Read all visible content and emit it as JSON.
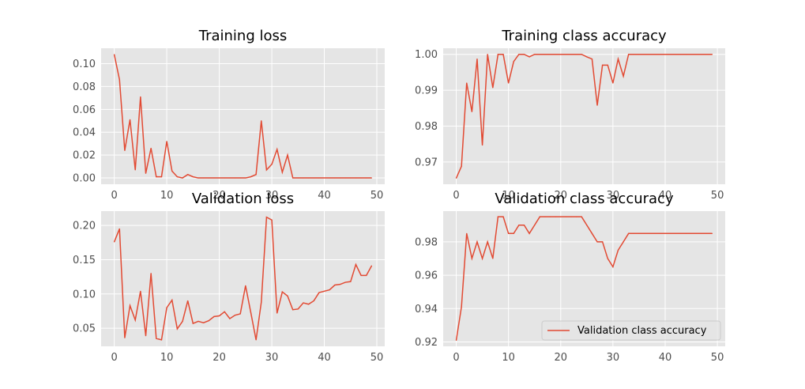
{
  "figure": {
    "background": "#ffffff",
    "axes_background": "#e5e5e5",
    "grid_color": "#ffffff",
    "line_color": "#e24a33"
  },
  "chart_data": [
    {
      "type": "line",
      "title": "Training loss",
      "xlabel": "",
      "ylabel": "",
      "xlim": [
        -2.5,
        51.5
      ],
      "ylim": [
        -0.0055,
        0.1135
      ],
      "xticks": [
        0,
        10,
        20,
        30,
        40,
        50
      ],
      "yticks": [
        0.0,
        0.02,
        0.04,
        0.06,
        0.08,
        0.1
      ],
      "ytick_labels": [
        "0.00",
        "0.02",
        "0.04",
        "0.06",
        "0.08",
        "0.10"
      ],
      "grid": true,
      "series": [
        {
          "x": [
            0,
            1,
            2,
            3,
            4,
            5,
            6,
            7,
            8,
            9,
            10,
            11,
            12,
            13,
            14,
            15,
            16,
            17,
            18,
            19,
            20,
            21,
            22,
            23,
            24,
            25,
            26,
            27,
            28,
            29,
            30,
            31,
            32,
            33,
            34,
            35,
            36,
            37,
            38,
            39,
            40,
            41,
            42,
            43,
            44,
            45,
            46,
            47,
            48,
            49
          ],
          "values": [
            0.108,
            0.086,
            0.024,
            0.051,
            0.007,
            0.071,
            0.004,
            0.026,
            0.001,
            0.001,
            0.032,
            0.006,
            0.001,
            0.0,
            0.003,
            0.001,
            0.0,
            0.0,
            0.0,
            0.0,
            0.0,
            0.0,
            0.0,
            0.0,
            0.0,
            0.0,
            0.001,
            0.003,
            0.05,
            0.007,
            0.012,
            0.025,
            0.005,
            0.02,
            0.0,
            0.0,
            0.0,
            0.0,
            0.0,
            0.0,
            0.0,
            0.0,
            0.0,
            0.0,
            0.0,
            0.0,
            0.0,
            0.0,
            0.0,
            0.0
          ]
        }
      ]
    },
    {
      "type": "line",
      "title": "Training class accuracy",
      "xlabel": "",
      "ylabel": "",
      "xlim": [
        -2.5,
        51.5
      ],
      "ylim": [
        0.9638,
        1.0017
      ],
      "xticks": [
        0,
        10,
        20,
        30,
        40,
        50
      ],
      "yticks": [
        0.97,
        0.98,
        0.99,
        1.0
      ],
      "ytick_labels": [
        "0.97",
        "0.98",
        "0.99",
        "1.00"
      ],
      "grid": true,
      "series": [
        {
          "x": [
            0,
            1,
            2,
            3,
            4,
            5,
            6,
            7,
            8,
            9,
            10,
            11,
            12,
            13,
            14,
            15,
            16,
            17,
            18,
            19,
            20,
            21,
            22,
            23,
            24,
            25,
            26,
            27,
            28,
            29,
            30,
            31,
            32,
            33,
            34,
            35,
            36,
            37,
            38,
            39,
            40,
            41,
            42,
            43,
            44,
            45,
            46,
            47,
            48,
            49
          ],
          "values": [
            0.9655,
            0.9688,
            0.992,
            0.984,
            0.9987,
            0.9747,
            1.0,
            0.9907,
            1.0,
            1.0,
            0.992,
            0.998,
            1.0,
            1.0,
            0.9993,
            1.0,
            1.0,
            1.0,
            1.0,
            1.0,
            1.0,
            1.0,
            1.0,
            1.0,
            1.0,
            0.9993,
            0.9987,
            0.9858,
            0.997,
            0.997,
            0.992,
            0.9987,
            0.9939,
            1.0,
            1.0,
            1.0,
            1.0,
            1.0,
            1.0,
            1.0,
            1.0,
            1.0,
            1.0,
            1.0,
            1.0,
            1.0,
            1.0,
            1.0,
            1.0,
            1.0
          ]
        }
      ]
    },
    {
      "type": "line",
      "title": "Validation loss",
      "xlabel": "",
      "ylabel": "",
      "xlim": [
        -2.5,
        51.5
      ],
      "ylim": [
        0.0236,
        0.2209
      ],
      "xticks": [
        0,
        10,
        20,
        30,
        40,
        50
      ],
      "yticks": [
        0.05,
        0.1,
        0.15,
        0.2
      ],
      "ytick_labels": [
        "0.05",
        "0.10",
        "0.15",
        "0.20"
      ],
      "grid": true,
      "series": [
        {
          "x": [
            0,
            1,
            2,
            3,
            4,
            5,
            6,
            7,
            8,
            9,
            10,
            11,
            12,
            13,
            14,
            15,
            16,
            17,
            18,
            19,
            20,
            21,
            22,
            23,
            24,
            25,
            26,
            27,
            28,
            29,
            30,
            31,
            32,
            33,
            34,
            35,
            36,
            37,
            38,
            39,
            40,
            41,
            42,
            43,
            44,
            45,
            46,
            47,
            48,
            49
          ],
          "values": [
            0.176,
            0.195,
            0.036,
            0.083,
            0.062,
            0.104,
            0.039,
            0.13,
            0.035,
            0.033,
            0.08,
            0.091,
            0.049,
            0.06,
            0.09,
            0.057,
            0.06,
            0.058,
            0.061,
            0.067,
            0.068,
            0.074,
            0.064,
            0.069,
            0.071,
            0.112,
            0.073,
            0.033,
            0.088,
            0.212,
            0.208,
            0.072,
            0.103,
            0.097,
            0.077,
            0.078,
            0.087,
            0.085,
            0.09,
            0.102,
            0.104,
            0.106,
            0.113,
            0.114,
            0.117,
            0.118,
            0.143,
            0.127,
            0.127,
            0.141
          ]
        }
      ]
    },
    {
      "type": "line",
      "title": "Validation class accuracy",
      "xlabel": "",
      "ylabel": "",
      "xlim": [
        -2.5,
        51.5
      ],
      "ylim": [
        0.9174,
        0.9984
      ],
      "xticks": [
        0,
        10,
        20,
        30,
        40,
        50
      ],
      "yticks": [
        0.92,
        0.94,
        0.96,
        0.98
      ],
      "ytick_labels": [
        "0.92",
        "0.94",
        "0.96",
        "0.98"
      ],
      "grid": true,
      "legend": {
        "placement": "lower-right",
        "entries": [
          "Validation class accuracy"
        ]
      },
      "series": [
        {
          "name": "Validation class accuracy",
          "x": [
            0,
            1,
            2,
            3,
            4,
            5,
            6,
            7,
            8,
            9,
            10,
            11,
            12,
            13,
            14,
            15,
            16,
            17,
            18,
            19,
            20,
            21,
            22,
            23,
            24,
            25,
            26,
            27,
            28,
            29,
            30,
            31,
            32,
            33,
            34,
            35,
            36,
            37,
            38,
            39,
            40,
            41,
            42,
            43,
            44,
            45,
            46,
            47,
            48,
            49
          ],
          "values": [
            0.921,
            0.941,
            0.985,
            0.97,
            0.98,
            0.97,
            0.98,
            0.97,
            0.995,
            0.995,
            0.985,
            0.985,
            0.99,
            0.99,
            0.985,
            0.99,
            0.995,
            0.995,
            0.995,
            0.995,
            0.995,
            0.995,
            0.995,
            0.995,
            0.995,
            0.99,
            0.985,
            0.98,
            0.98,
            0.97,
            0.965,
            0.975,
            0.98,
            0.985,
            0.985,
            0.985,
            0.985,
            0.985,
            0.985,
            0.985,
            0.985,
            0.985,
            0.985,
            0.985,
            0.985,
            0.985,
            0.985,
            0.985,
            0.985,
            0.985
          ]
        }
      ]
    }
  ]
}
